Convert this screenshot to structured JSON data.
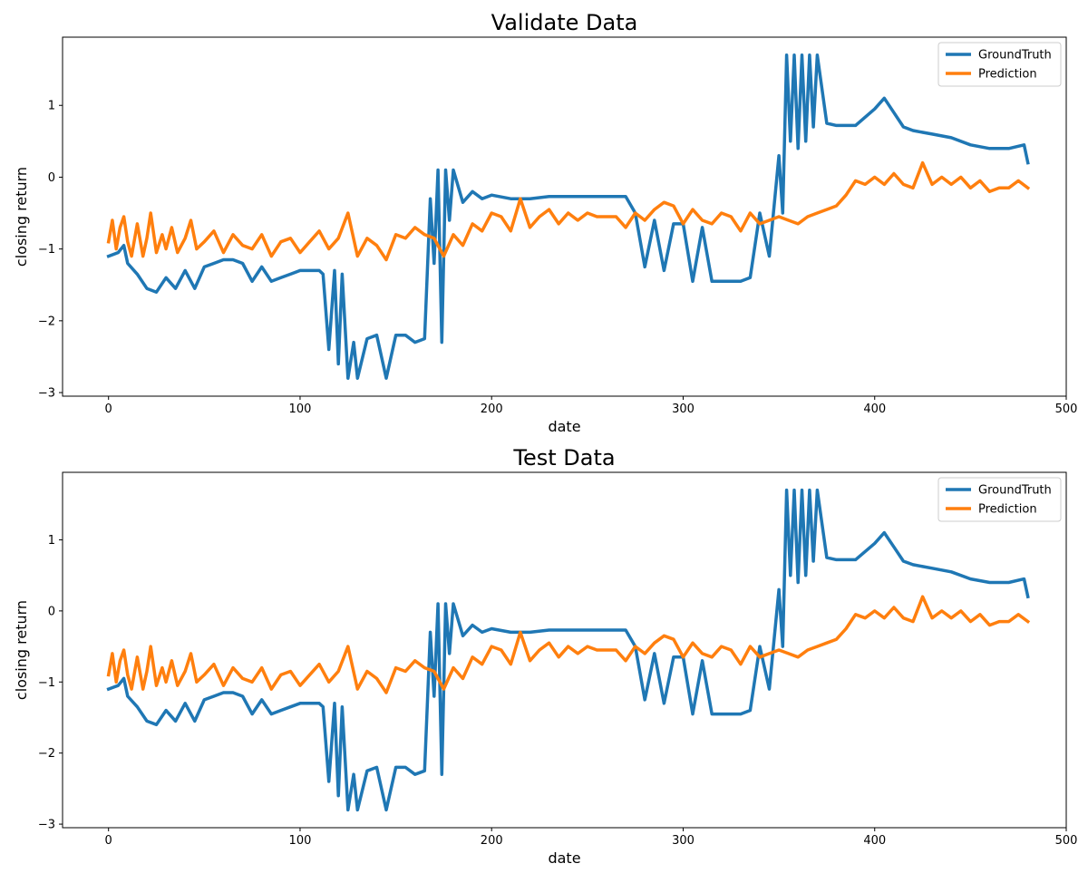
{
  "chart_data": [
    {
      "type": "line",
      "title": "Validate Data",
      "xlabel": "date",
      "ylabel": "closing return",
      "xlim": [
        -24,
        500
      ],
      "ylim": [
        -3.05,
        1.95
      ],
      "xticks": [
        0,
        100,
        200,
        300,
        400,
        500
      ],
      "yticks": [
        -3,
        -2,
        -1,
        0,
        1
      ],
      "ytick_labels": [
        "−3",
        "−2",
        "−1",
        "0",
        "1"
      ],
      "grid": false,
      "legend_position": "top-right",
      "series": [
        {
          "name": "GroundTruth",
          "color": "#1f77b4",
          "x": [
            0,
            5,
            8,
            10,
            15,
            20,
            25,
            30,
            35,
            40,
            45,
            50,
            55,
            60,
            65,
            70,
            75,
            80,
            85,
            90,
            95,
            100,
            105,
            110,
            112,
            115,
            118,
            120,
            122,
            125,
            128,
            130,
            135,
            140,
            145,
            150,
            155,
            160,
            165,
            168,
            170,
            172,
            174,
            176,
            178,
            180,
            185,
            190,
            195,
            200,
            210,
            220,
            230,
            240,
            250,
            260,
            270,
            275,
            280,
            285,
            290,
            295,
            300,
            305,
            310,
            315,
            320,
            325,
            330,
            335,
            340,
            345,
            350,
            352,
            354,
            356,
            358,
            360,
            362,
            364,
            366,
            368,
            370,
            375,
            380,
            390,
            400,
            405,
            410,
            415,
            420,
            430,
            440,
            450,
            460,
            470,
            478,
            480
          ],
          "y": [
            -1.1,
            -1.05,
            -0.95,
            -1.2,
            -1.35,
            -1.55,
            -1.6,
            -1.4,
            -1.55,
            -1.3,
            -1.55,
            -1.25,
            -1.2,
            -1.15,
            -1.15,
            -1.2,
            -1.45,
            -1.25,
            -1.45,
            -1.4,
            -1.35,
            -1.3,
            -1.3,
            -1.3,
            -1.35,
            -2.4,
            -1.3,
            -2.6,
            -1.35,
            -2.8,
            -2.3,
            -2.8,
            -2.25,
            -2.2,
            -2.8,
            -2.2,
            -2.2,
            -2.3,
            -2.25,
            -0.3,
            -1.2,
            0.1,
            -2.3,
            0.1,
            -0.6,
            0.1,
            -0.35,
            -0.2,
            -0.3,
            -0.25,
            -0.3,
            -0.3,
            -0.27,
            -0.27,
            -0.27,
            -0.27,
            -0.27,
            -0.5,
            -1.25,
            -0.6,
            -1.3,
            -0.65,
            -0.65,
            -1.45,
            -0.7,
            -1.45,
            -1.45,
            -1.45,
            -1.45,
            -1.4,
            -0.5,
            -1.1,
            0.3,
            -0.5,
            1.7,
            0.5,
            1.7,
            0.4,
            1.7,
            0.5,
            1.7,
            0.7,
            1.7,
            0.75,
            0.72,
            0.72,
            0.95,
            1.1,
            0.9,
            0.7,
            0.65,
            0.6,
            0.55,
            0.45,
            0.4,
            0.4,
            0.45,
            0.2
          ]
        },
        {
          "name": "Prediction",
          "color": "#ff7f0e",
          "x": [
            0,
            2,
            4,
            6,
            8,
            10,
            12,
            15,
            18,
            20,
            22,
            25,
            28,
            30,
            33,
            36,
            40,
            43,
            46,
            50,
            55,
            60,
            65,
            70,
            75,
            80,
            85,
            90,
            95,
            100,
            105,
            110,
            115,
            120,
            125,
            130,
            135,
            140,
            145,
            150,
            155,
            160,
            165,
            170,
            175,
            180,
            185,
            190,
            195,
            200,
            205,
            210,
            215,
            220,
            225,
            230,
            235,
            240,
            245,
            250,
            255,
            260,
            265,
            270,
            275,
            280,
            285,
            290,
            295,
            300,
            305,
            310,
            315,
            320,
            325,
            330,
            335,
            340,
            345,
            350,
            355,
            360,
            365,
            370,
            375,
            380,
            385,
            390,
            395,
            400,
            405,
            410,
            415,
            420,
            425,
            430,
            435,
            440,
            445,
            450,
            455,
            460,
            465,
            470,
            475,
            480
          ],
          "y": [
            -0.9,
            -0.6,
            -1.0,
            -0.7,
            -0.55,
            -0.9,
            -1.1,
            -0.65,
            -1.1,
            -0.85,
            -0.5,
            -1.05,
            -0.8,
            -1.0,
            -0.7,
            -1.05,
            -0.85,
            -0.6,
            -1.0,
            -0.9,
            -0.75,
            -1.05,
            -0.8,
            -0.95,
            -1.0,
            -0.8,
            -1.1,
            -0.9,
            -0.85,
            -1.05,
            -0.9,
            -0.75,
            -1.0,
            -0.85,
            -0.5,
            -1.1,
            -0.85,
            -0.95,
            -1.15,
            -0.8,
            -0.85,
            -0.7,
            -0.8,
            -0.85,
            -1.1,
            -0.8,
            -0.95,
            -0.65,
            -0.75,
            -0.5,
            -0.55,
            -0.75,
            -0.3,
            -0.7,
            -0.55,
            -0.45,
            -0.65,
            -0.5,
            -0.6,
            -0.5,
            -0.55,
            -0.55,
            -0.55,
            -0.7,
            -0.5,
            -0.6,
            -0.45,
            -0.35,
            -0.4,
            -0.65,
            -0.45,
            -0.6,
            -0.65,
            -0.5,
            -0.55,
            -0.75,
            -0.5,
            -0.65,
            -0.6,
            -0.55,
            -0.6,
            -0.65,
            -0.55,
            -0.5,
            -0.45,
            -0.4,
            -0.25,
            -0.05,
            -0.1,
            0.0,
            -0.1,
            0.05,
            -0.1,
            -0.15,
            0.2,
            -0.1,
            0.0,
            -0.1,
            0.0,
            -0.15,
            -0.05,
            -0.2,
            -0.15,
            -0.15,
            -0.05,
            -0.15
          ]
        }
      ]
    },
    {
      "type": "line",
      "title": "Test Data",
      "xlabel": "date",
      "ylabel": "closing return",
      "xlim": [
        -24,
        500
      ],
      "ylim": [
        -3.05,
        1.95
      ],
      "xticks": [
        0,
        100,
        200,
        300,
        400,
        500
      ],
      "yticks": [
        -3,
        -2,
        -1,
        0,
        1
      ],
      "ytick_labels": [
        "−3",
        "−2",
        "−1",
        "0",
        "1"
      ],
      "grid": false,
      "legend_position": "top-right",
      "series": [
        {
          "name": "GroundTruth",
          "color": "#1f77b4",
          "x": [
            0,
            5,
            8,
            10,
            15,
            20,
            25,
            30,
            35,
            40,
            45,
            50,
            55,
            60,
            65,
            70,
            75,
            80,
            85,
            90,
            95,
            100,
            105,
            110,
            112,
            115,
            118,
            120,
            122,
            125,
            128,
            130,
            135,
            140,
            145,
            150,
            155,
            160,
            165,
            168,
            170,
            172,
            174,
            176,
            178,
            180,
            185,
            190,
            195,
            200,
            210,
            220,
            230,
            240,
            250,
            260,
            270,
            275,
            280,
            285,
            290,
            295,
            300,
            305,
            310,
            315,
            320,
            325,
            330,
            335,
            340,
            345,
            350,
            352,
            354,
            356,
            358,
            360,
            362,
            364,
            366,
            368,
            370,
            375,
            380,
            390,
            400,
            405,
            410,
            415,
            420,
            430,
            440,
            450,
            460,
            470,
            478,
            480
          ],
          "y": [
            -1.1,
            -1.05,
            -0.95,
            -1.2,
            -1.35,
            -1.55,
            -1.6,
            -1.4,
            -1.55,
            -1.3,
            -1.55,
            -1.25,
            -1.2,
            -1.15,
            -1.15,
            -1.2,
            -1.45,
            -1.25,
            -1.45,
            -1.4,
            -1.35,
            -1.3,
            -1.3,
            -1.3,
            -1.35,
            -2.4,
            -1.3,
            -2.6,
            -1.35,
            -2.8,
            -2.3,
            -2.8,
            -2.25,
            -2.2,
            -2.8,
            -2.2,
            -2.2,
            -2.3,
            -2.25,
            -0.3,
            -1.2,
            0.1,
            -2.3,
            0.1,
            -0.6,
            0.1,
            -0.35,
            -0.2,
            -0.3,
            -0.25,
            -0.3,
            -0.3,
            -0.27,
            -0.27,
            -0.27,
            -0.27,
            -0.27,
            -0.5,
            -1.25,
            -0.6,
            -1.3,
            -0.65,
            -0.65,
            -1.45,
            -0.7,
            -1.45,
            -1.45,
            -1.45,
            -1.45,
            -1.4,
            -0.5,
            -1.1,
            0.3,
            -0.5,
            1.7,
            0.5,
            1.7,
            0.4,
            1.7,
            0.5,
            1.7,
            0.7,
            1.7,
            0.75,
            0.72,
            0.72,
            0.95,
            1.1,
            0.9,
            0.7,
            0.65,
            0.6,
            0.55,
            0.45,
            0.4,
            0.4,
            0.45,
            0.2
          ]
        },
        {
          "name": "Prediction",
          "color": "#ff7f0e",
          "x": [
            0,
            2,
            4,
            6,
            8,
            10,
            12,
            15,
            18,
            20,
            22,
            25,
            28,
            30,
            33,
            36,
            40,
            43,
            46,
            50,
            55,
            60,
            65,
            70,
            75,
            80,
            85,
            90,
            95,
            100,
            105,
            110,
            115,
            120,
            125,
            130,
            135,
            140,
            145,
            150,
            155,
            160,
            165,
            170,
            175,
            180,
            185,
            190,
            195,
            200,
            205,
            210,
            215,
            220,
            225,
            230,
            235,
            240,
            245,
            250,
            255,
            260,
            265,
            270,
            275,
            280,
            285,
            290,
            295,
            300,
            305,
            310,
            315,
            320,
            325,
            330,
            335,
            340,
            345,
            350,
            355,
            360,
            365,
            370,
            375,
            380,
            385,
            390,
            395,
            400,
            405,
            410,
            415,
            420,
            425,
            430,
            435,
            440,
            445,
            450,
            455,
            460,
            465,
            470,
            475,
            480
          ],
          "y": [
            -0.9,
            -0.6,
            -1.0,
            -0.7,
            -0.55,
            -0.9,
            -1.1,
            -0.65,
            -1.1,
            -0.85,
            -0.5,
            -1.05,
            -0.8,
            -1.0,
            -0.7,
            -1.05,
            -0.85,
            -0.6,
            -1.0,
            -0.9,
            -0.75,
            -1.05,
            -0.8,
            -0.95,
            -1.0,
            -0.8,
            -1.1,
            -0.9,
            -0.85,
            -1.05,
            -0.9,
            -0.75,
            -1.0,
            -0.85,
            -0.5,
            -1.1,
            -0.85,
            -0.95,
            -1.15,
            -0.8,
            -0.85,
            -0.7,
            -0.8,
            -0.85,
            -1.1,
            -0.8,
            -0.95,
            -0.65,
            -0.75,
            -0.5,
            -0.55,
            -0.75,
            -0.3,
            -0.7,
            -0.55,
            -0.45,
            -0.65,
            -0.5,
            -0.6,
            -0.5,
            -0.55,
            -0.55,
            -0.55,
            -0.7,
            -0.5,
            -0.6,
            -0.45,
            -0.35,
            -0.4,
            -0.65,
            -0.45,
            -0.6,
            -0.65,
            -0.5,
            -0.55,
            -0.75,
            -0.5,
            -0.65,
            -0.6,
            -0.55,
            -0.6,
            -0.65,
            -0.55,
            -0.5,
            -0.45,
            -0.4,
            -0.25,
            -0.05,
            -0.1,
            0.0,
            -0.1,
            0.05,
            -0.1,
            -0.15,
            0.2,
            -0.1,
            0.0,
            -0.1,
            0.0,
            -0.15,
            -0.05,
            -0.2,
            -0.15,
            -0.15,
            -0.05,
            -0.15
          ]
        }
      ]
    }
  ]
}
